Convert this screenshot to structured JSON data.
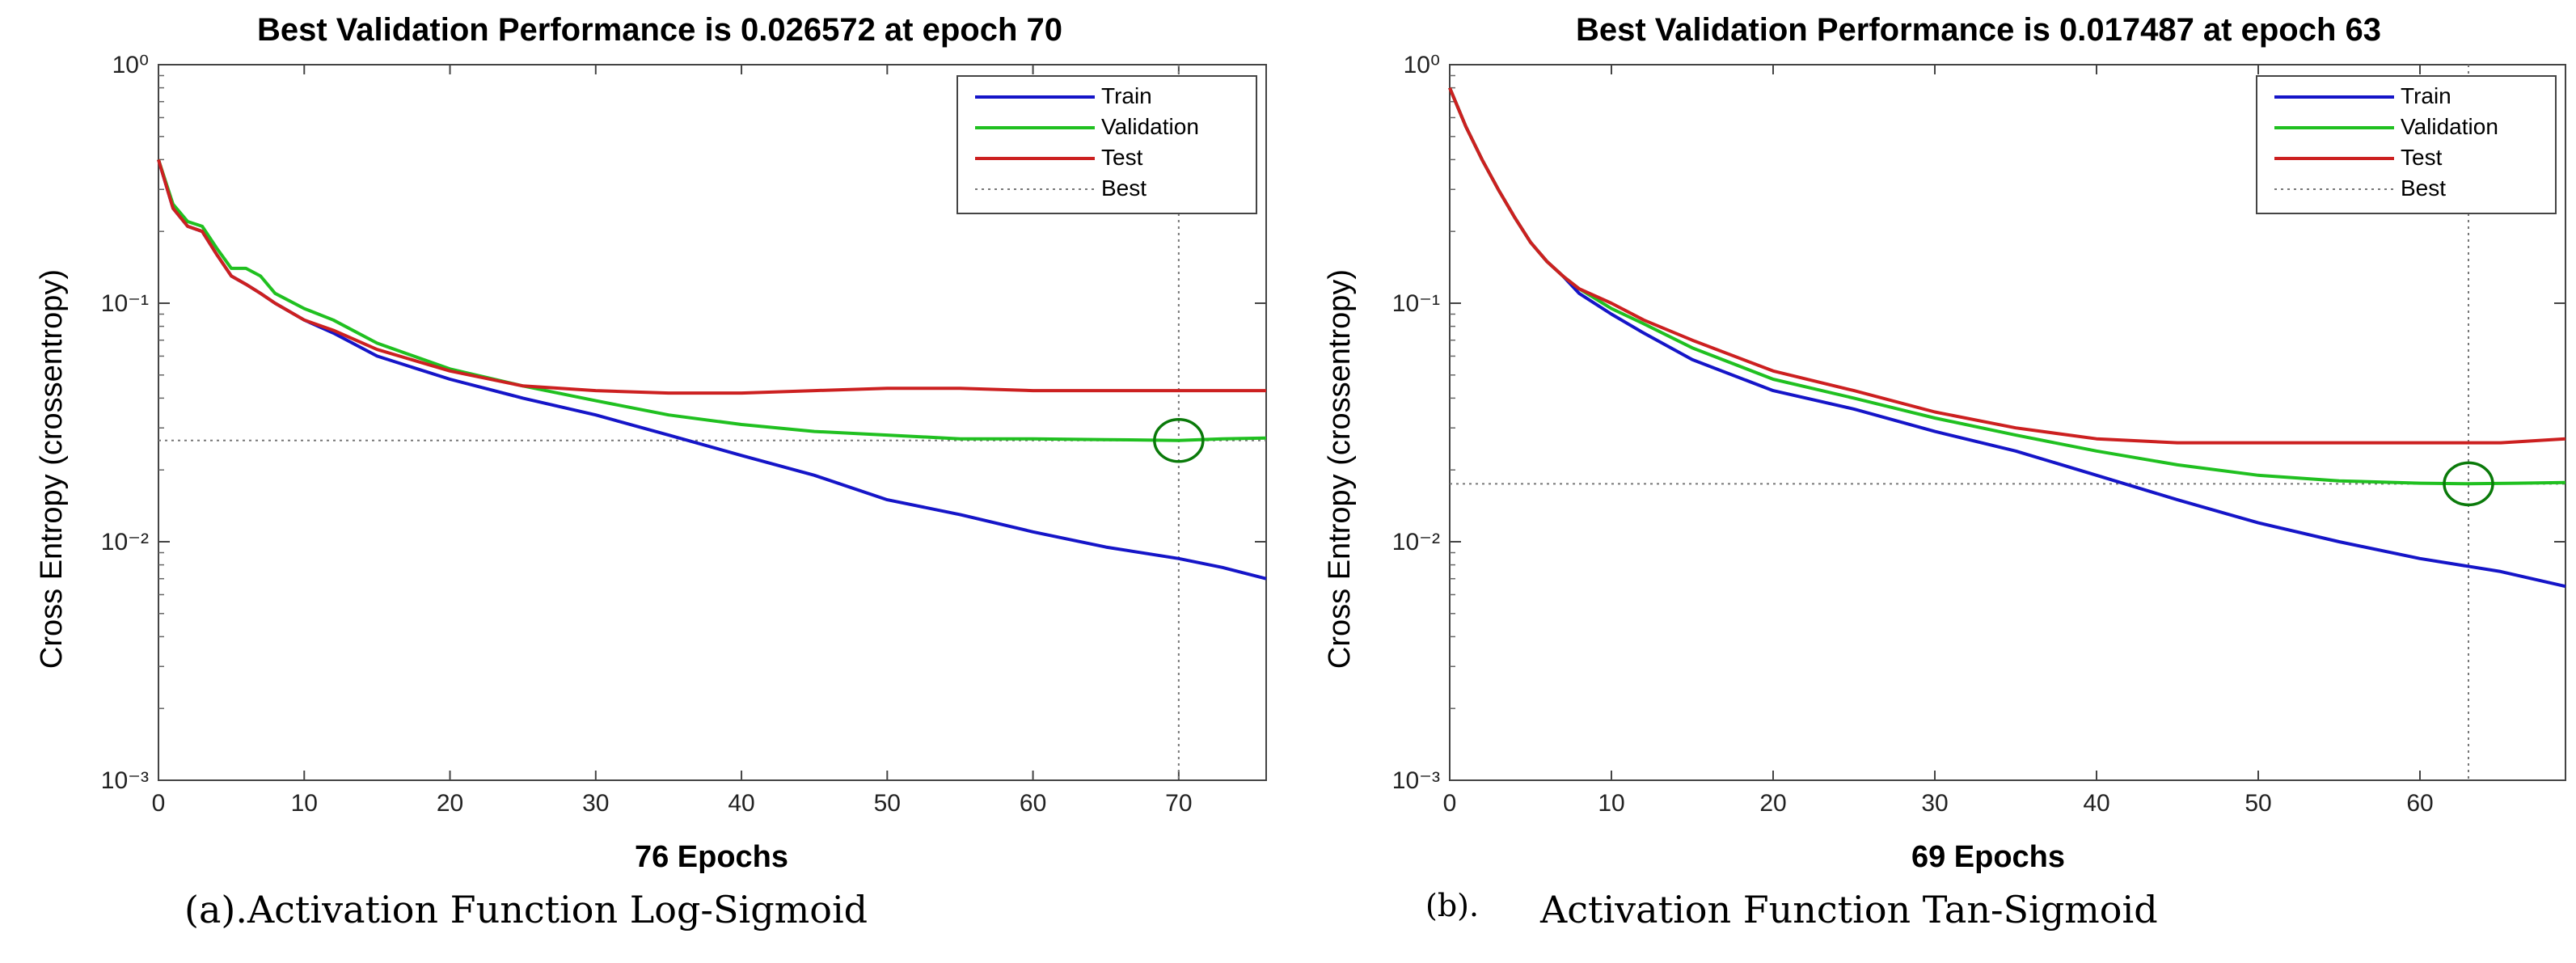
{
  "chart_data": [
    {
      "type": "line",
      "title": "Best Validation Performance is 0.026572 at epoch 70",
      "xlabel": "76 Epochs",
      "ylabel": "Cross Entropy  (crossentropy)",
      "yscale": "log",
      "xlim": [
        0,
        76
      ],
      "ylim": [
        0.001,
        1
      ],
      "xticks": [
        "0",
        "10",
        "20",
        "30",
        "40",
        "50",
        "60",
        "70"
      ],
      "xtick_values": [
        0,
        10,
        20,
        30,
        40,
        50,
        60,
        70
      ],
      "yticks": [
        "10⁻³",
        "10⁻²",
        "10⁻¹",
        "10⁰"
      ],
      "ytick_values": [
        0.001,
        0.01,
        0.1,
        1
      ],
      "best": {
        "epoch": 70,
        "value": 0.026572
      },
      "legend": [
        "Train",
        "Validation",
        "Test",
        "Best"
      ],
      "legend_position": "top-right",
      "caption": "(a).Activation Function Log-Sigmoid",
      "series": [
        {
          "name": "Train",
          "color": "#1515c8",
          "x": [
            0,
            1,
            2,
            3,
            4,
            5,
            6,
            7,
            8,
            10,
            12,
            15,
            20,
            25,
            30,
            35,
            40,
            45,
            50,
            55,
            60,
            65,
            70,
            73,
            76
          ],
          "y": [
            0.4,
            0.25,
            0.21,
            0.2,
            0.16,
            0.13,
            0.12,
            0.11,
            0.1,
            0.085,
            0.075,
            0.06,
            0.048,
            0.04,
            0.034,
            0.028,
            0.023,
            0.019,
            0.015,
            0.013,
            0.011,
            0.0095,
            0.0085,
            0.0078,
            0.007
          ]
        },
        {
          "name": "Validation",
          "color": "#20c020",
          "x": [
            0,
            1,
            2,
            3,
            4,
            5,
            6,
            7,
            8,
            10,
            12,
            15,
            20,
            25,
            30,
            35,
            40,
            45,
            50,
            55,
            60,
            65,
            70,
            73,
            76
          ],
          "y": [
            0.4,
            0.26,
            0.22,
            0.21,
            0.17,
            0.14,
            0.14,
            0.13,
            0.11,
            0.095,
            0.085,
            0.068,
            0.053,
            0.045,
            0.039,
            0.034,
            0.031,
            0.029,
            0.028,
            0.027,
            0.027,
            0.0268,
            0.0266,
            0.027,
            0.0272
          ]
        },
        {
          "name": "Test",
          "color": "#cc2020",
          "x": [
            0,
            1,
            2,
            3,
            4,
            5,
            6,
            7,
            8,
            10,
            12,
            15,
            20,
            25,
            30,
            35,
            40,
            45,
            50,
            55,
            60,
            65,
            70,
            73,
            76
          ],
          "y": [
            0.4,
            0.25,
            0.21,
            0.2,
            0.16,
            0.13,
            0.12,
            0.11,
            0.1,
            0.085,
            0.077,
            0.064,
            0.052,
            0.045,
            0.043,
            0.042,
            0.042,
            0.043,
            0.044,
            0.044,
            0.043,
            0.043,
            0.043,
            0.043,
            0.043
          ]
        }
      ]
    },
    {
      "type": "line",
      "title": "Best Validation Performance is 0.017487 at epoch 63",
      "xlabel": "69 Epochs",
      "ylabel": "Cross Entropy  (crossentropy)",
      "yscale": "log",
      "xlim": [
        0,
        69
      ],
      "ylim": [
        0.001,
        1
      ],
      "xticks": [
        "0",
        "10",
        "20",
        "30",
        "40",
        "50",
        "60"
      ],
      "xtick_values": [
        0,
        10,
        20,
        30,
        40,
        50,
        60
      ],
      "yticks": [
        "10⁻³",
        "10⁻²",
        "10⁻¹",
        "10⁰"
      ],
      "ytick_values": [
        0.001,
        0.01,
        0.1,
        1
      ],
      "best": {
        "epoch": 63,
        "value": 0.017487
      },
      "legend": [
        "Train",
        "Validation",
        "Test",
        "Best"
      ],
      "legend_position": "top-right",
      "caption_prefix": "(b).",
      "caption": "Activation Function Tan-Sigmoid",
      "series": [
        {
          "name": "Train",
          "color": "#1515c8",
          "x": [
            0,
            1,
            2,
            3,
            4,
            5,
            6,
            7,
            8,
            10,
            12,
            15,
            20,
            25,
            30,
            35,
            40,
            45,
            50,
            55,
            60,
            65,
            69
          ],
          "y": [
            0.8,
            0.55,
            0.4,
            0.3,
            0.23,
            0.18,
            0.15,
            0.13,
            0.11,
            0.09,
            0.075,
            0.058,
            0.043,
            0.036,
            0.029,
            0.024,
            0.019,
            0.015,
            0.012,
            0.01,
            0.0085,
            0.0075,
            0.0065
          ]
        },
        {
          "name": "Validation",
          "color": "#20c020",
          "x": [
            0,
            1,
            2,
            3,
            4,
            5,
            6,
            7,
            8,
            10,
            12,
            15,
            20,
            25,
            30,
            35,
            40,
            45,
            50,
            55,
            60,
            63,
            66,
            69
          ],
          "y": [
            0.8,
            0.55,
            0.4,
            0.3,
            0.23,
            0.18,
            0.15,
            0.13,
            0.115,
            0.095,
            0.082,
            0.065,
            0.048,
            0.04,
            0.033,
            0.028,
            0.024,
            0.021,
            0.019,
            0.018,
            0.0176,
            0.0175,
            0.0176,
            0.0177
          ]
        },
        {
          "name": "Test",
          "color": "#cc2020",
          "x": [
            0,
            1,
            2,
            3,
            4,
            5,
            6,
            7,
            8,
            10,
            12,
            15,
            20,
            25,
            30,
            35,
            40,
            45,
            50,
            55,
            60,
            65,
            69
          ],
          "y": [
            0.8,
            0.55,
            0.4,
            0.3,
            0.23,
            0.18,
            0.15,
            0.13,
            0.115,
            0.1,
            0.085,
            0.07,
            0.052,
            0.043,
            0.035,
            0.03,
            0.027,
            0.026,
            0.026,
            0.026,
            0.026,
            0.026,
            0.027
          ]
        }
      ]
    }
  ]
}
